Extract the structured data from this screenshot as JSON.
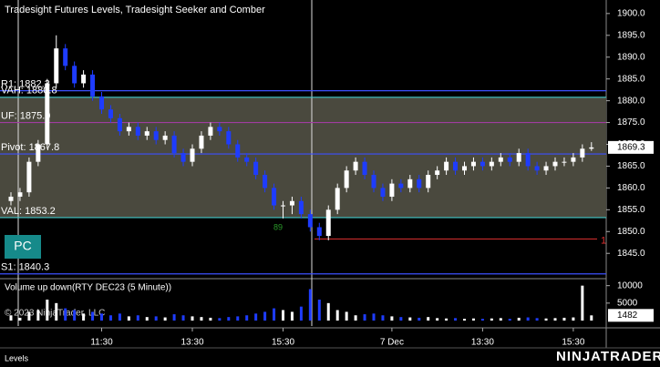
{
  "chart_data": {
    "type": "candlestick",
    "title": "Tradesight Futures Levels, Tradesight Seeker and Comber",
    "volume_title": "Volume up down(RTY DEC23 (5 Minute))",
    "copyright": "© 2023 NinjaTrader, LLC",
    "tab": "Levels",
    "logo": "NINJATRADER",
    "badge": "PC",
    "annotation": "89",
    "categories": [
      null,
      null,
      null,
      null,
      null,
      null,
      null,
      null,
      null,
      null,
      "11:30",
      null,
      null,
      null,
      null,
      null,
      null,
      null,
      null,
      null,
      "13:30",
      null,
      null,
      null,
      null,
      null,
      null,
      null,
      null,
      null,
      "15:30",
      null,
      null,
      null,
      null,
      null,
      null,
      null,
      null,
      null,
      null,
      null,
      "7 Dec",
      null,
      null,
      null,
      null,
      null,
      null,
      null,
      null,
      null,
      "13:30",
      null,
      null,
      null,
      null,
      null,
      null,
      null,
      null,
      null,
      "15:30",
      null,
      null
    ],
    "open": [
      1857,
      1858,
      1859,
      1866,
      1870,
      1884,
      1892,
      1888,
      1884,
      1886,
      1881,
      1878,
      1876,
      1873,
      1874,
      1872,
      1873,
      1871,
      1872,
      1868,
      1866,
      1869,
      1872,
      1874,
      1873,
      1870,
      1867,
      1866,
      1863,
      1860,
      1856,
      1856,
      1857,
      1854,
      1851,
      1849,
      1855,
      1860,
      1864,
      1866,
      1863,
      1860,
      1858,
      1861,
      1860,
      1862,
      1860,
      1863,
      1864,
      1866,
      1864,
      1865,
      1866,
      1865,
      1866,
      1867,
      1866,
      1868,
      1865,
      1864,
      1865,
      1866,
      1866,
      1867,
      1869
    ],
    "high": [
      1859,
      1860,
      1867,
      1871,
      1885,
      1895,
      1893,
      1889,
      1887,
      1887,
      1882,
      1879,
      1877,
      1875,
      1875,
      1874,
      1874,
      1873,
      1873,
      1869,
      1870,
      1873,
      1875,
      1875,
      1874,
      1871,
      1868,
      1867,
      1864,
      1861,
      1857,
      1858,
      1858,
      1855,
      1852,
      1856,
      1861,
      1865,
      1867,
      1867,
      1864,
      1861,
      1862,
      1862,
      1863,
      1863,
      1864,
      1865,
      1867,
      1867,
      1866,
      1867,
      1867,
      1867,
      1868,
      1868,
      1869,
      1869,
      1866,
      1866,
      1867,
      1867,
      1868,
      1870,
      1870.5
    ],
    "low": [
      1856,
      1857,
      1858,
      1865,
      1869,
      1883,
      1887,
      1883,
      1883,
      1880,
      1877,
      1875,
      1872,
      1872,
      1871,
      1871,
      1870,
      1870,
      1867,
      1865,
      1865,
      1868,
      1871,
      1872,
      1869,
      1866,
      1865,
      1862,
      1859,
      1855,
      1853,
      1854,
      1853,
      1850,
      1848,
      1848,
      1854,
      1859,
      1863,
      1862,
      1859,
      1857,
      1857,
      1859,
      1859,
      1859,
      1859,
      1862,
      1863,
      1863,
      1863,
      1864,
      1864,
      1864,
      1865,
      1865,
      1865,
      1864,
      1863,
      1863,
      1864,
      1865,
      1865,
      1866,
      1868.5
    ],
    "close": [
      1858,
      1859,
      1866,
      1870,
      1884,
      1892,
      1888,
      1884,
      1886,
      1881,
      1878,
      1876,
      1873,
      1874,
      1872,
      1873,
      1871,
      1872,
      1868,
      1866,
      1869,
      1872,
      1874,
      1873,
      1870,
      1867,
      1866,
      1863,
      1860,
      1856,
      1856,
      1857,
      1854,
      1851,
      1849,
      1855,
      1860,
      1864,
      1866,
      1863,
      1860,
      1858,
      1861,
      1860,
      1862,
      1860,
      1863,
      1864,
      1866,
      1864,
      1865,
      1866,
      1865,
      1866,
      1867,
      1866,
      1868,
      1865,
      1864,
      1865,
      1866,
      1866,
      1867,
      1869,
      1869.3
    ],
    "volume": [
      1500,
      800,
      2500,
      3000,
      6000,
      5000,
      3500,
      3000,
      2000,
      2500,
      2000,
      1500,
      2000,
      1200,
      1500,
      1000,
      1200,
      900,
      1800,
      1500,
      1200,
      1000,
      800,
      700,
      1000,
      1200,
      1500,
      2000,
      2500,
      3500,
      3000,
      2500,
      4000,
      9000,
      6000,
      5000,
      3000,
      2500,
      1500,
      1800,
      2000,
      1500,
      1200,
      1000,
      900,
      800,
      1000,
      700,
      600,
      700,
      500,
      600,
      500,
      600,
      700,
      500,
      800,
      900,
      700,
      600,
      700,
      800,
      900,
      10000,
      1482
    ],
    "up_color": "#ffffff",
    "down_color": "#1e3cff",
    "ylim": [
      1839.2,
      1903.1
    ],
    "yticks": [
      {
        "value": 1845,
        "label": "1845.0"
      },
      {
        "value": 1850,
        "label": "1850.0"
      },
      {
        "value": 1855,
        "label": "1855.0"
      },
      {
        "value": 1860,
        "label": "1860.0"
      },
      {
        "value": 1865,
        "label": "1865.0"
      },
      {
        "value": 1870,
        "label": "1870.0"
      },
      {
        "value": 1875,
        "label": "1875.0"
      },
      {
        "value": 1880,
        "label": "1880.0"
      },
      {
        "value": 1885,
        "label": "1885.0"
      },
      {
        "value": 1890,
        "label": "1890.0"
      },
      {
        "value": 1895,
        "label": "1895.0"
      },
      {
        "value": 1900,
        "label": "1900.0"
      }
    ],
    "vlim": [
      0,
      12000
    ],
    "vticks": [
      5000,
      10000
    ],
    "levels": [
      {
        "label": "R1: 1882.3",
        "value": 1882.3,
        "color": "#3c50ff"
      },
      {
        "label": "VAH: 1880.8",
        "value": 1880.8,
        "color": "#40c8c8"
      },
      {
        "label": "UF: 1875.0",
        "value": 1875.0,
        "color": "#a03ca0"
      },
      {
        "label": "Pivot: 1867.8",
        "value": 1867.8,
        "color": "#3c50ff"
      },
      {
        "label": "VAL: 1853.2",
        "value": 1853.2,
        "color": "#40c8c8"
      },
      {
        "label": "S1: 1840.3",
        "value": 1840.3,
        "color": "#3c50ff"
      }
    ],
    "session_low": {
      "value": 1848.3,
      "label": "1",
      "color": "#e03030"
    },
    "last_price": 1869.3,
    "last_volume": 1482
  }
}
